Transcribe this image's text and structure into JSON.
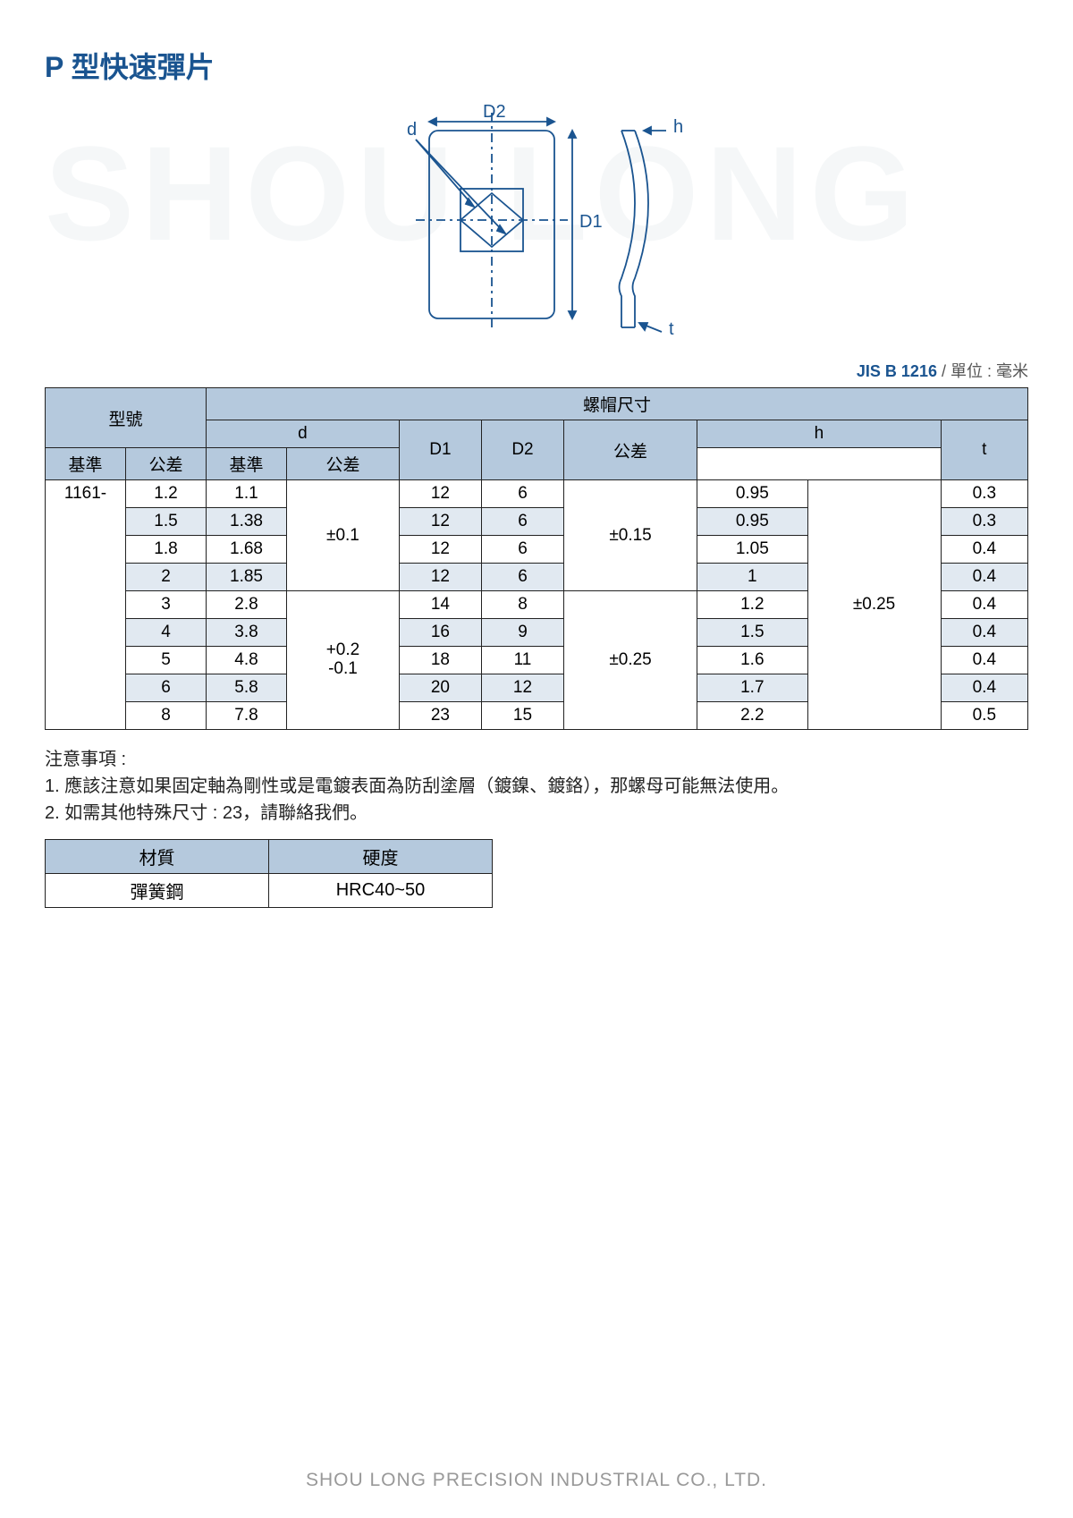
{
  "watermark": "SHOU LONG",
  "title": "P 型快速彈片",
  "diagram": {
    "labels": {
      "d": "d",
      "D1": "D1",
      "D2": "D2",
      "h": "h",
      "t": "t"
    },
    "stroke_color": "#1a5490",
    "stroke_width": 1.8
  },
  "standard": {
    "code": "JIS B 1216",
    "unit_label": "/ 單位 : 毫米"
  },
  "table": {
    "headers": {
      "model": "型號",
      "cap_dims": "螺帽尺寸",
      "d": "d",
      "basis": "基準",
      "tol": "公差",
      "D1": "D1",
      "D2": "D2",
      "tol_shared": "公差",
      "h": "h",
      "t": "t"
    },
    "model_prefix": "1161-",
    "d_tol_group1": "±0.1",
    "d_tol_group2_upper": "+0.2",
    "d_tol_group2_lower": "-0.1",
    "D_tol_group1": "±0.15",
    "D_tol_group2": "±0.25",
    "h_tol": "±0.25",
    "rows": [
      {
        "size": "1.2",
        "d": "1.1",
        "D1": "12",
        "D2": "6",
        "h": "0.95",
        "t": "0.3",
        "alt": false
      },
      {
        "size": "1.5",
        "d": "1.38",
        "D1": "12",
        "D2": "6",
        "h": "0.95",
        "t": "0.3",
        "alt": true
      },
      {
        "size": "1.8",
        "d": "1.68",
        "D1": "12",
        "D2": "6",
        "h": "1.05",
        "t": "0.4",
        "alt": false
      },
      {
        "size": "2",
        "d": "1.85",
        "D1": "12",
        "D2": "6",
        "h": "1",
        "t": "0.4",
        "alt": true
      },
      {
        "size": "3",
        "d": "2.8",
        "D1": "14",
        "D2": "8",
        "h": "1.2",
        "t": "0.4",
        "alt": false
      },
      {
        "size": "4",
        "d": "3.8",
        "D1": "16",
        "D2": "9",
        "h": "1.5",
        "t": "0.4",
        "alt": true
      },
      {
        "size": "5",
        "d": "4.8",
        "D1": "18",
        "D2": "11",
        "h": "1.6",
        "t": "0.4",
        "alt": false
      },
      {
        "size": "6",
        "d": "5.8",
        "D1": "20",
        "D2": "12",
        "h": "1.7",
        "t": "0.4",
        "alt": true
      },
      {
        "size": "8",
        "d": "7.8",
        "D1": "23",
        "D2": "15",
        "h": "2.2",
        "t": "0.5",
        "alt": false
      }
    ]
  },
  "notes": {
    "heading": "注意事項 :",
    "items": [
      "1. 應該注意如果固定軸為剛性或是電鍍表面為防刮塗層（鍍鎳、鍍鉻），那螺母可能無法使用。",
      "2. 如需其他特殊尺寸 : 23，請聯絡我們。"
    ]
  },
  "material_table": {
    "headers": [
      "材質",
      "硬度"
    ],
    "row": [
      "彈簧鋼",
      "HRC40~50"
    ]
  },
  "footer": "SHOU LONG PRECISION INDUSTRIAL CO., LTD."
}
